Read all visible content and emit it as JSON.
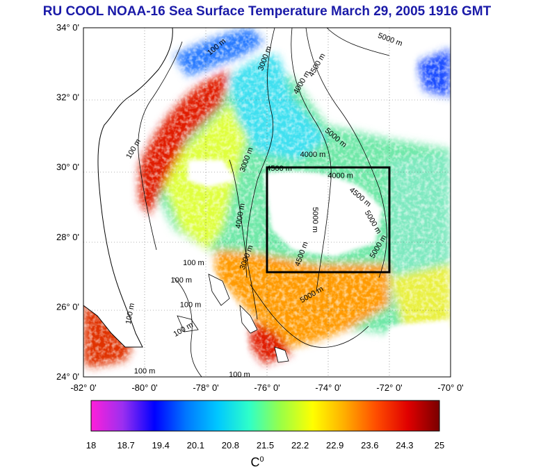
{
  "title": "RU COOL  NOAA-16 Sea Surface Temperature March 29, 2005 1916 GMT",
  "map": {
    "lat_labels": [
      "34° 0'",
      "32° 0'",
      "30° 0'",
      "28° 0'",
      "26° 0'",
      "24° 0'"
    ],
    "lon_labels": [
      "-82° 0'",
      "-80° 0'",
      "-78° 0'",
      "-76° 0'",
      "-74° 0'",
      "-72° 0'",
      "-70° 0'"
    ],
    "lat_range": [
      24,
      34
    ],
    "lon_range": [
      -82,
      -70
    ],
    "study_box": {
      "lon": [
        -76,
        -72
      ],
      "lat": [
        27,
        30
      ]
    },
    "contour_labels": [
      {
        "text": "100 m",
        "lon": -77.6,
        "lat": 33.4,
        "rot": -40
      },
      {
        "text": "3000 m",
        "lon": -76.0,
        "lat": 33.1,
        "rot": -70
      },
      {
        "text": "5000 m",
        "lon": -72.0,
        "lat": 33.6,
        "rot": 20
      },
      {
        "text": "4000 m",
        "lon": -74.8,
        "lat": 32.4,
        "rot": -60
      },
      {
        "text": "4500 m",
        "lon": -74.3,
        "lat": 32.9,
        "rot": -60
      },
      {
        "text": "100 m",
        "lon": -80.3,
        "lat": 30.5,
        "rot": -60
      },
      {
        "text": "3000 m",
        "lon": -76.6,
        "lat": 30.2,
        "rot": -70
      },
      {
        "text": "4000 m",
        "lon": -74.5,
        "lat": 30.3,
        "rot": 0
      },
      {
        "text": "4500 m",
        "lon": -75.6,
        "lat": 29.9,
        "rot": 0
      },
      {
        "text": "5000 m",
        "lon": -73.8,
        "lat": 30.8,
        "rot": 40
      },
      {
        "text": "4000 m",
        "lon": -73.6,
        "lat": 29.7,
        "rot": 0
      },
      {
        "text": "4500 m",
        "lon": -73.0,
        "lat": 29.1,
        "rot": 40
      },
      {
        "text": "5000 m",
        "lon": -72.6,
        "lat": 28.4,
        "rot": 60
      },
      {
        "text": "5000 m",
        "lon": -74.5,
        "lat": 28.5,
        "rot": 90
      },
      {
        "text": "4500 m",
        "lon": -74.8,
        "lat": 27.5,
        "rot": -70
      },
      {
        "text": "5000 m",
        "lon": -72.3,
        "lat": 27.7,
        "rot": -60
      },
      {
        "text": "5000 m",
        "lon": -74.5,
        "lat": 26.3,
        "rot": -30
      },
      {
        "text": "4000 m",
        "lon": -76.8,
        "lat": 28.6,
        "rot": -80
      },
      {
        "text": "3000 m",
        "lon": -76.6,
        "lat": 27.4,
        "rot": -70
      },
      {
        "text": "100 m",
        "lon": -78.4,
        "lat": 27.2,
        "rot": 0
      },
      {
        "text": "100 m",
        "lon": -78.8,
        "lat": 26.7,
        "rot": 0
      },
      {
        "text": "100 m",
        "lon": -78.5,
        "lat": 26.0,
        "rot": 0
      },
      {
        "text": "100 m",
        "lon": -78.7,
        "lat": 25.3,
        "rot": -30
      },
      {
        "text": "100 m",
        "lon": -80.4,
        "lat": 25.8,
        "rot": -80
      },
      {
        "text": "100 m",
        "lon": -80.0,
        "lat": 24.1,
        "rot": 0
      },
      {
        "text": "100 m",
        "lon": -76.9,
        "lat": 24.0,
        "rot": 0
      }
    ]
  },
  "colorbar": {
    "min": 18,
    "max": 25,
    "tick_labels": [
      "18",
      "18.7",
      "19.4",
      "20.1",
      "20.8",
      "21.5",
      "22.2",
      "22.9",
      "23.6",
      "24.3",
      "25"
    ],
    "unit": "C",
    "unit_sup": "0",
    "colors": [
      "#ff1fd9",
      "#9b2ff0",
      "#0000ff",
      "#0077ff",
      "#00c8ff",
      "#2fffc8",
      "#9bff45",
      "#ffff00",
      "#ffae00",
      "#ff4d00",
      "#e00000",
      "#7a0000"
    ]
  }
}
